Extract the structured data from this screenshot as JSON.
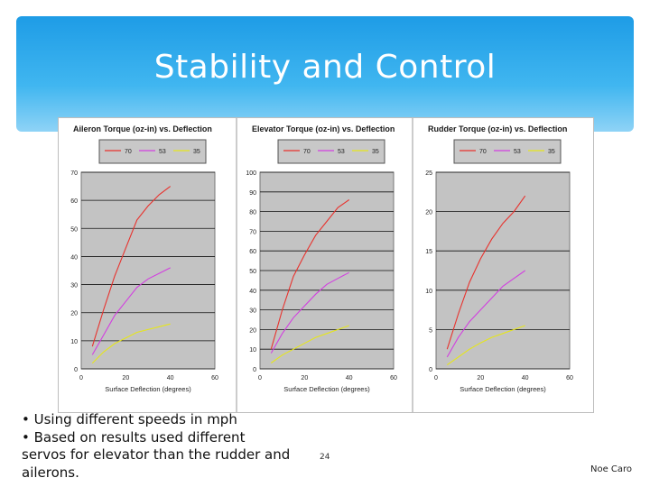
{
  "slide": {
    "title": "Stability and Control",
    "bullets": [
      "• Using different  speeds in mph",
      "• Based on results used different servos for elevator than  the rudder and ailerons."
    ],
    "page_number": "24",
    "author": "Noe Caro",
    "accent_color": "#1e9ce6"
  },
  "chart_data": [
    {
      "type": "line",
      "title": "Aileron Torque (oz-in) vs. Deflection",
      "xlabel": "Surface Deflection (degrees)",
      "ylabel": "",
      "xlim": [
        0,
        60
      ],
      "ylim": [
        0,
        70
      ],
      "xticks": [
        0,
        20,
        40,
        60
      ],
      "yticks": [
        0,
        10,
        20,
        30,
        40,
        50,
        60,
        70
      ],
      "series": [
        {
          "name": "70",
          "color": "#e8322d",
          "x": [
            5,
            10,
            15,
            20,
            25,
            30,
            35,
            40
          ],
          "y": [
            8,
            21,
            33,
            43,
            53,
            58,
            62,
            65
          ]
        },
        {
          "name": "53",
          "color": "#d23fe0",
          "x": [
            5,
            10,
            15,
            20,
            25,
            30,
            35,
            40
          ],
          "y": [
            5,
            12,
            19,
            24,
            29,
            32,
            34,
            36
          ]
        },
        {
          "name": "35",
          "color": "#e6e61a",
          "x": [
            5,
            10,
            15,
            20,
            25,
            30,
            35,
            40
          ],
          "y": [
            2,
            6,
            9,
            11,
            13,
            14,
            15,
            16
          ]
        }
      ]
    },
    {
      "type": "line",
      "title": "Elevator Torque (oz-in) vs. Deflection",
      "xlabel": "Surface Deflection (degrees)",
      "ylabel": "",
      "xlim": [
        0,
        60
      ],
      "ylim": [
        0,
        100
      ],
      "xticks": [
        0,
        20,
        40,
        60
      ],
      "yticks": [
        0,
        10,
        20,
        30,
        40,
        50,
        60,
        70,
        80,
        90,
        100
      ],
      "series": [
        {
          "name": "70",
          "color": "#e8322d",
          "x": [
            5,
            10,
            15,
            20,
            25,
            30,
            35,
            40
          ],
          "y": [
            10,
            30,
            47,
            58,
            68,
            75,
            82,
            86
          ]
        },
        {
          "name": "53",
          "color": "#d23fe0",
          "x": [
            5,
            10,
            15,
            20,
            25,
            30,
            35,
            40
          ],
          "y": [
            8,
            18,
            26,
            32,
            38,
            43,
            46,
            49
          ]
        },
        {
          "name": "35",
          "color": "#e6e61a",
          "x": [
            5,
            10,
            15,
            20,
            25,
            30,
            35,
            40
          ],
          "y": [
            3,
            7,
            10,
            13,
            16,
            18,
            20,
            22
          ]
        }
      ]
    },
    {
      "type": "line",
      "title": "Rudder Torque (oz-in) vs. Deflection",
      "xlabel": "Surface Deflection (degrees)",
      "ylabel": "",
      "xlim": [
        0,
        60
      ],
      "ylim": [
        0,
        25
      ],
      "xticks": [
        0,
        20,
        40,
        60
      ],
      "yticks": [
        0,
        5,
        10,
        15,
        20,
        25
      ],
      "series": [
        {
          "name": "70",
          "color": "#e8322d",
          "x": [
            5,
            10,
            15,
            20,
            25,
            30,
            35,
            40
          ],
          "y": [
            2.5,
            7,
            11,
            14,
            16.5,
            18.5,
            20,
            22
          ]
        },
        {
          "name": "53",
          "color": "#d23fe0",
          "x": [
            5,
            10,
            15,
            20,
            25,
            30,
            35,
            40
          ],
          "y": [
            1.5,
            4,
            6,
            7.5,
            9,
            10.5,
            11.5,
            12.5
          ]
        },
        {
          "name": "35",
          "color": "#e6e61a",
          "x": [
            5,
            10,
            15,
            20,
            25,
            30,
            35,
            40
          ],
          "y": [
            0.5,
            1.5,
            2.5,
            3.3,
            4,
            4.5,
            5,
            5.5
          ]
        }
      ]
    }
  ]
}
